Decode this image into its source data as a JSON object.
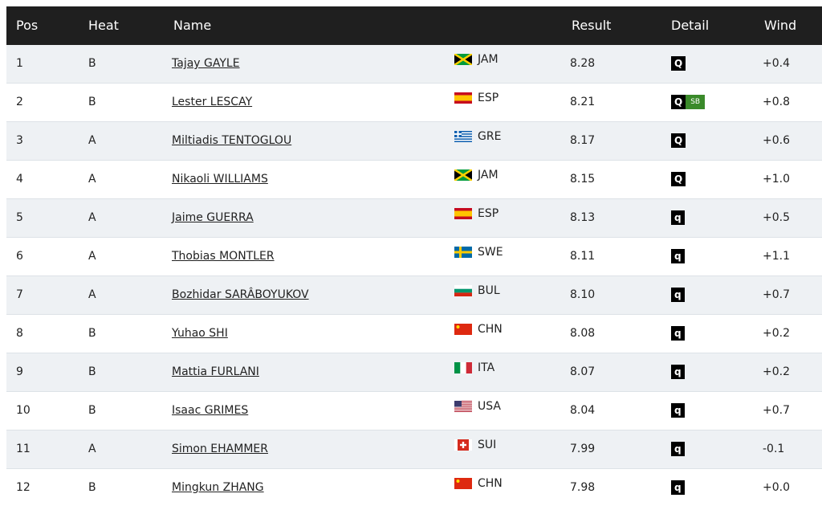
{
  "table": {
    "header": [
      "Pos",
      "Heat",
      "Name",
      "Result",
      "Detail",
      "Wind"
    ],
    "rows": [
      {
        "pos": "1",
        "heat": "B",
        "name": "Tajay GAYLE",
        "country": "JAM",
        "result": "8.28",
        "detail": [
          "Q"
        ],
        "wind": "+0.4"
      },
      {
        "pos": "2",
        "heat": "B",
        "name": "Lester LESCAY",
        "country": "ESP",
        "result": "8.21",
        "detail": [
          "Q",
          "SB"
        ],
        "wind": "+0.8"
      },
      {
        "pos": "3",
        "heat": "A",
        "name": "Miltiadis TENTOGLOU",
        "country": "GRE",
        "result": "8.17",
        "detail": [
          "Q"
        ],
        "wind": "+0.6"
      },
      {
        "pos": "4",
        "heat": "A",
        "name": "Nikaoli WILLIAMS",
        "country": "JAM",
        "result": "8.15",
        "detail": [
          "Q"
        ],
        "wind": "+1.0"
      },
      {
        "pos": "5",
        "heat": "A",
        "name": "Jaime GUERRA",
        "country": "ESP",
        "result": "8.13",
        "detail": [
          "q"
        ],
        "wind": "+0.5"
      },
      {
        "pos": "6",
        "heat": "A",
        "name": "Thobias MONTLER",
        "country": "SWE",
        "result": "8.11",
        "detail": [
          "q"
        ],
        "wind": "+1.1"
      },
      {
        "pos": "7",
        "heat": "A",
        "name": "Bozhidar SARÂBOYUKOV",
        "country": "BUL",
        "result": "8.10",
        "detail": [
          "q"
        ],
        "wind": "+0.7"
      },
      {
        "pos": "8",
        "heat": "B",
        "name": "Yuhao SHI",
        "country": "CHN",
        "result": "8.08",
        "detail": [
          "q"
        ],
        "wind": "+0.2"
      },
      {
        "pos": "9",
        "heat": "B",
        "name": "Mattia FURLANI",
        "country": "ITA",
        "result": "8.07",
        "detail": [
          "q"
        ],
        "wind": "+0.2"
      },
      {
        "pos": "10",
        "heat": "B",
        "name": "Isaac GRIMES",
        "country": "USA",
        "result": "8.04",
        "detail": [
          "q"
        ],
        "wind": "+0.7"
      },
      {
        "pos": "11",
        "heat": "A",
        "name": "Simon EHAMMER",
        "country": "SUI",
        "result": "7.99",
        "detail": [
          "q"
        ],
        "wind": "-0.1"
      },
      {
        "pos": "12",
        "heat": "B",
        "name": "Mingkun ZHANG",
        "country": "CHN",
        "result": "7.98",
        "detail": [
          "q"
        ],
        "wind": "+0.0"
      }
    ]
  }
}
